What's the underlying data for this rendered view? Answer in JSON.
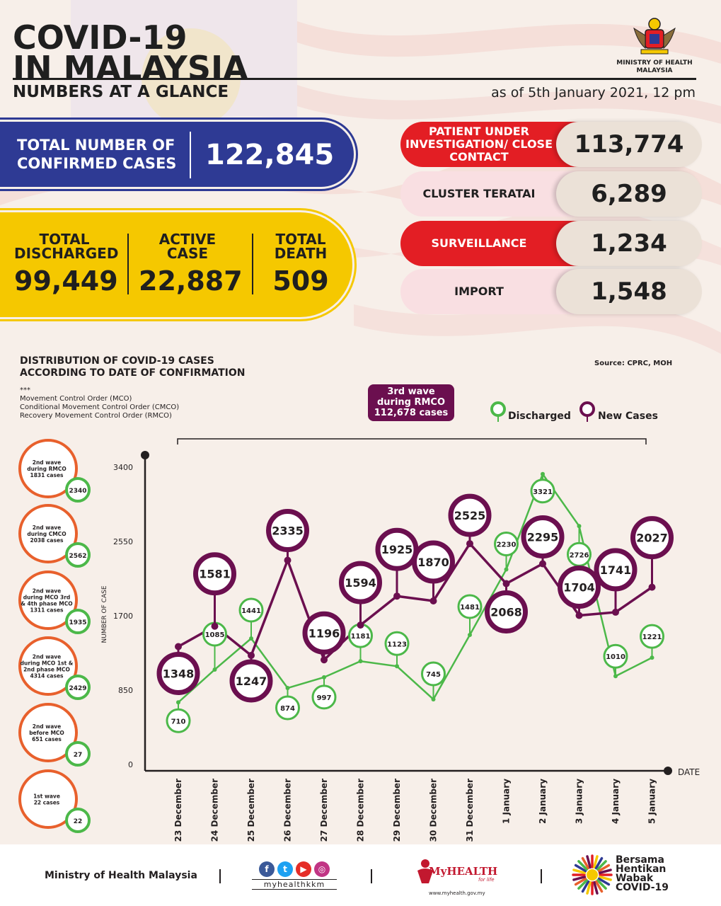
{
  "header": {
    "title_line1": "COVID-19",
    "title_line2": "IN MALAYSIA",
    "subtitle": "NUMBERS AT A GLANCE",
    "as_of": "as of 5th January 2021, 12 pm",
    "ministry_line1": "MINISTRY OF HEALTH",
    "ministry_line2": "MALAYSIA"
  },
  "totals": {
    "confirmed_label": "TOTAL NUMBER OF CONFIRMED CASES",
    "confirmed_value": "122,845",
    "discharged_label": "TOTAL DISCHARGED",
    "discharged_value": "99,449",
    "active_label": "ACTIVE CASE",
    "active_value": "22,887",
    "death_label": "TOTAL DEATH",
    "death_value": "509"
  },
  "stats": [
    {
      "label": "PATIENT UNDER INVESTIGATION/ CLOSE CONTACT",
      "value": "113,774",
      "style": "red"
    },
    {
      "label": "CLUSTER TERATAI",
      "value": "6,289",
      "style": "pink"
    },
    {
      "label": "SURVEILLANCE",
      "value": "1,234",
      "style": "red"
    },
    {
      "label": "IMPORT",
      "value": "1,548",
      "style": "pink"
    }
  ],
  "chart_meta": {
    "title_line1": "DISTRIBUTION OF COVID-19 CASES",
    "title_line2": "ACCORDING TO DATE OF CONFIRMATION",
    "source": "Source: CPRC, MOH",
    "notes_marker": "***",
    "note_mco": "Movement Control Order (MCO)",
    "note_cmco": "Conditional Movement Control Order (CMCO)",
    "note_rmco": "Recovery Movement Control Order (RMCO)",
    "wave3_line1": "3rd wave",
    "wave3_line2": "during RMCO",
    "wave3_line3": "112,678 cases",
    "legend_discharged": "Discharged",
    "legend_new": "New Cases",
    "x_axis_label": "DATE",
    "y_axis_label": "NUMBER OF CASE"
  },
  "waves": [
    {
      "line1": "2nd wave",
      "line2": "during RMCO",
      "line3": "1831 cases",
      "line4": "",
      "line5": "",
      "discharged": "2340"
    },
    {
      "line1": "2nd wave",
      "line2": "during CMCO",
      "line3": "2038 cases",
      "line4": "",
      "line5": "",
      "discharged": "2562"
    },
    {
      "line1": "2nd wave",
      "line2": "during MCO 3rd",
      "line3": "& 4th phase MCO",
      "line4": "1311 cases",
      "line5": "",
      "discharged": "1935"
    },
    {
      "line1": "2nd wave",
      "line2": "during MCO 1st &",
      "line3": "2nd phase MCO",
      "line4": "4314 cases",
      "line5": "",
      "discharged": "2429"
    },
    {
      "line1": "2nd wave",
      "line2": "before MCO",
      "line3": "651 cases",
      "line4": "",
      "line5": "",
      "discharged": "27"
    },
    {
      "line1": "1st wave",
      "line2": "22 cases",
      "line3": "",
      "line4": "",
      "line5": "",
      "discharged": "22"
    }
  ],
  "chart_data": {
    "type": "line",
    "categories": [
      "23 December",
      "24 December",
      "25 December",
      "26 December",
      "27 December",
      "28 December",
      "29 December",
      "30 December",
      "31 December",
      "1 January",
      "2 January",
      "3 January",
      "4 January",
      "5 January"
    ],
    "series": [
      {
        "name": "Discharged",
        "values": [
          710,
          1085,
          1441,
          874,
          997,
          1181,
          1123,
          745,
          1481,
          2230,
          3321,
          2726,
          1010,
          1221
        ],
        "color": "#4cb849"
      },
      {
        "name": "New Cases",
        "values": [
          1348,
          1581,
          1247,
          2335,
          1196,
          1594,
          1925,
          1870,
          2525,
          2068,
          2295,
          1704,
          1741,
          2027
        ],
        "color": "#6b0f4f"
      }
    ],
    "yticks": [
      0,
      850,
      1700,
      2550,
      3400
    ],
    "ylim": [
      0,
      3400
    ],
    "xlabel": "DATE",
    "ylabel": "NUMBER OF CASE"
  },
  "footer": {
    "ministry": "Ministry of Health Malaysia",
    "handle": "myhealthkkm",
    "myhealth_brand": "MyHEALTH",
    "myhealth_tag": "for life",
    "myhealth_url": "www.myhealth.gov.my",
    "bersama_line1": "Bersama",
    "bersama_line2": "Hentikan",
    "bersama_line3": "Wabak",
    "bersama_line4": "COVID-19"
  },
  "colors": {
    "navy": "#2e3a94",
    "yellow": "#f5c800",
    "red": "#e31e24",
    "pink": "#f9dfe2",
    "green": "#4cb849",
    "purple": "#6b0f4f",
    "orange": "#e8602c"
  }
}
